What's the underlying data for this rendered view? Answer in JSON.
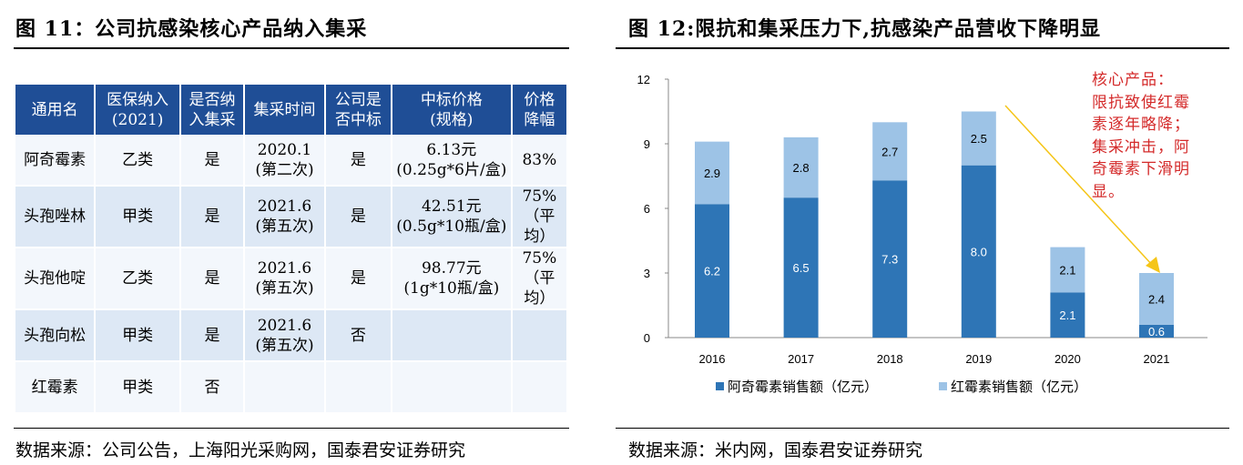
{
  "left": {
    "title": "图 11：公司抗感染核心产品纳入集采",
    "table": {
      "headers": [
        [
          "通用名"
        ],
        [
          "医保纳入",
          "(2021)"
        ],
        [
          "是否纳",
          "入集采"
        ],
        [
          "集采时间"
        ],
        [
          "公司是",
          "否中标"
        ],
        [
          "中标价格",
          "(规格)"
        ],
        [
          "价格",
          "降幅"
        ]
      ],
      "rows": [
        [
          [
            "阿奇霉素"
          ],
          [
            "乙类"
          ],
          [
            "是"
          ],
          [
            "2020.1",
            "(第二次)"
          ],
          [
            "是"
          ],
          [
            "6.13元",
            "(0.25g*6片/盒)"
          ],
          [
            "83%"
          ]
        ],
        [
          [
            "头孢唑林"
          ],
          [
            "甲类"
          ],
          [
            "是"
          ],
          [
            "2021.6",
            "(第五次)"
          ],
          [
            "是"
          ],
          [
            "42.51元",
            "(0.5g*10瓶/盒)"
          ],
          [
            "75%",
            "（平均）"
          ]
        ],
        [
          [
            "头孢他啶"
          ],
          [
            "乙类"
          ],
          [
            "是"
          ],
          [
            "2021.6",
            "(第五次)"
          ],
          [
            "是"
          ],
          [
            "98.77元",
            "(1g*10瓶/盒)"
          ],
          [
            "75%",
            "（平均）"
          ]
        ],
        [
          [
            "头孢向松"
          ],
          [
            "甲类"
          ],
          [
            "是"
          ],
          [
            "2021.6",
            "(第五次)"
          ],
          [
            "否"
          ],
          [
            ""
          ],
          [
            ""
          ]
        ],
        [
          [
            "红霉素"
          ],
          [
            "甲类"
          ],
          [
            "否"
          ],
          [
            ""
          ],
          [
            ""
          ],
          [
            ""
          ],
          [
            ""
          ]
        ]
      ]
    },
    "source": "数据来源：公司公告，上海阳光采购网，国泰君安证券研究"
  },
  "right": {
    "title": "图 12:限抗和集采压力下,抗感染产品营收下降明显",
    "annotation": [
      "核心产品：",
      "限抗致使红霉",
      "素逐年略降；",
      "集采冲击，阿",
      "奇霉素下滑明",
      "显。"
    ],
    "source": "数据来源：米内网，国泰君安证券研究"
  },
  "chart_data": {
    "type": "bar",
    "stacked": true,
    "categories": [
      "2016",
      "2017",
      "2018",
      "2019",
      "2020",
      "2021"
    ],
    "series": [
      {
        "name": "阿奇霉素销售额（亿元）",
        "values": [
          6.2,
          6.5,
          7.3,
          8.0,
          2.1,
          0.6
        ],
        "color": "#2e75b6"
      },
      {
        "name": "红霉素销售额（亿元）",
        "values": [
          2.9,
          2.8,
          2.7,
          2.5,
          2.1,
          2.4
        ],
        "color": "#9dc3e6"
      }
    ],
    "ylim": [
      0,
      12
    ],
    "yticks": [
      "0",
      "3",
      "6",
      "9",
      "12"
    ],
    "grid": false,
    "legend": "bottom",
    "arrow_color": "#f5c518"
  }
}
